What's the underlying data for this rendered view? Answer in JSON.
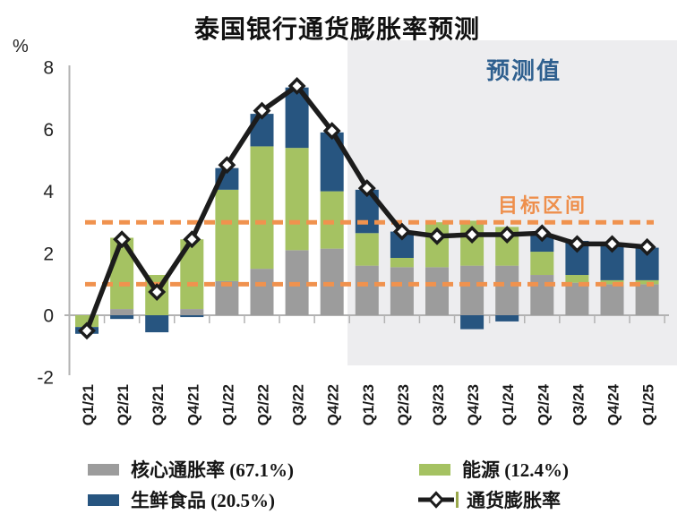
{
  "title": "泰国银行通货膨胀率预测",
  "y_axis": {
    "unit_label": "%",
    "ticks": [
      8,
      6,
      4,
      2,
      0,
      -2
    ],
    "min": -2,
    "max": 8
  },
  "annotations": {
    "forecast_label": "预测值",
    "target_label": "目标区间"
  },
  "colors": {
    "core": "#9c9c9c",
    "energy": "#a5c262",
    "fresh_food": "#275580",
    "line": "#1c1c1c",
    "target": "#f0924e",
    "forecast_bg": "#ededef",
    "forecast_label": "#2f608f",
    "axis": "#b3b3b3"
  },
  "chart_data": {
    "type": "bar",
    "subtype": "stacked-bar-with-line",
    "title": "泰国银行通货膨胀率预测",
    "ylabel": "%",
    "ylim": [
      -2,
      8
    ],
    "grid": false,
    "legend_position": "bottom",
    "categories": [
      "Q1/21",
      "Q2/21",
      "Q3/21",
      "Q4/21",
      "Q1/22",
      "Q2/22",
      "Q3/22",
      "Q4/22",
      "Q1/23",
      "Q2/23",
      "Q3/23",
      "Q4/23",
      "Q1/24",
      "Q2/24",
      "Q3/24",
      "Q4/24",
      "Q1/25"
    ],
    "series": [
      {
        "name": "核心通胀率 (67.1%)",
        "key": "core",
        "color": "#9c9c9c",
        "values": [
          0,
          0.2,
          0,
          0.2,
          1.1,
          1.5,
          2.1,
          2.15,
          1.6,
          1.55,
          1.55,
          1.6,
          1.6,
          1.3,
          1.05,
          1.0,
          1.0
        ]
      },
      {
        "name": "能源 (12.4%)",
        "key": "energy",
        "color": "#a5c262",
        "values": [
          -0.38,
          2.3,
          1.3,
          2.25,
          2.95,
          3.95,
          3.3,
          1.85,
          1.05,
          0.3,
          1.45,
          1.45,
          1.25,
          0.75,
          0.25,
          0.13,
          0.13
        ]
      },
      {
        "name": "生鲜食品 (20.5%)",
        "key": "fresh_food",
        "color": "#275580",
        "values": [
          -0.22,
          -0.12,
          -0.55,
          -0.06,
          0.7,
          1.05,
          1.95,
          1.9,
          1.4,
          0.85,
          0,
          -0.45,
          -0.2,
          0.55,
          1.1,
          1.12,
          1.05
        ]
      }
    ],
    "line": {
      "name": "通货膨胀率",
      "color": "#1c1c1c",
      "marker": "open-diamond",
      "values": [
        -0.5,
        2.45,
        0.75,
        2.45,
        4.85,
        6.6,
        7.4,
        5.95,
        4.1,
        2.7,
        2.55,
        2.6,
        2.6,
        2.65,
        2.3,
        2.3,
        2.2
      ]
    },
    "target_band": {
      "values": [
        1,
        3
      ],
      "style": "dashed",
      "color": "#f0924e",
      "label": "目标区间"
    },
    "forecast_start_category": "Q1/23",
    "forecast_label": "预测值"
  }
}
